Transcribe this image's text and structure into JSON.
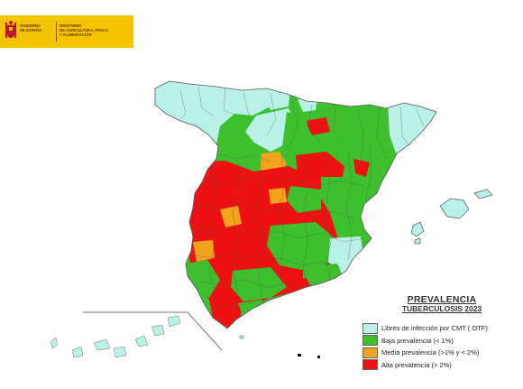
{
  "header": {
    "government_line1": "GOBIERNO",
    "government_line2": "DE ESPAÑA",
    "ministry_line1": "MINISTERIO",
    "ministry_line2": "DE AGRICULTURA, PESCA",
    "ministry_line3": "Y ALIMENTACIÓN"
  },
  "legend": {
    "title": "PREVALENCIA",
    "subtitle": "TUBERCULOSIS 2023",
    "items": [
      {
        "label": "Libres de infección por CMT ( OTF)",
        "color": "#b9f0e8"
      },
      {
        "label": "Baja prevalencia (< 1%)",
        "color": "#3ec02e"
      },
      {
        "label": "Media prevalencia (>1% y < 2%)",
        "color": "#f2a21b"
      },
      {
        "label": "Alta prevalencia (> 2%)",
        "color": "#ee1111"
      }
    ]
  },
  "colors": {
    "free": "#b9f0e8",
    "low": "#3ec02e",
    "medium": "#f2a21b",
    "high": "#ee1111",
    "border": "#555555",
    "banner": "#f4c400"
  }
}
